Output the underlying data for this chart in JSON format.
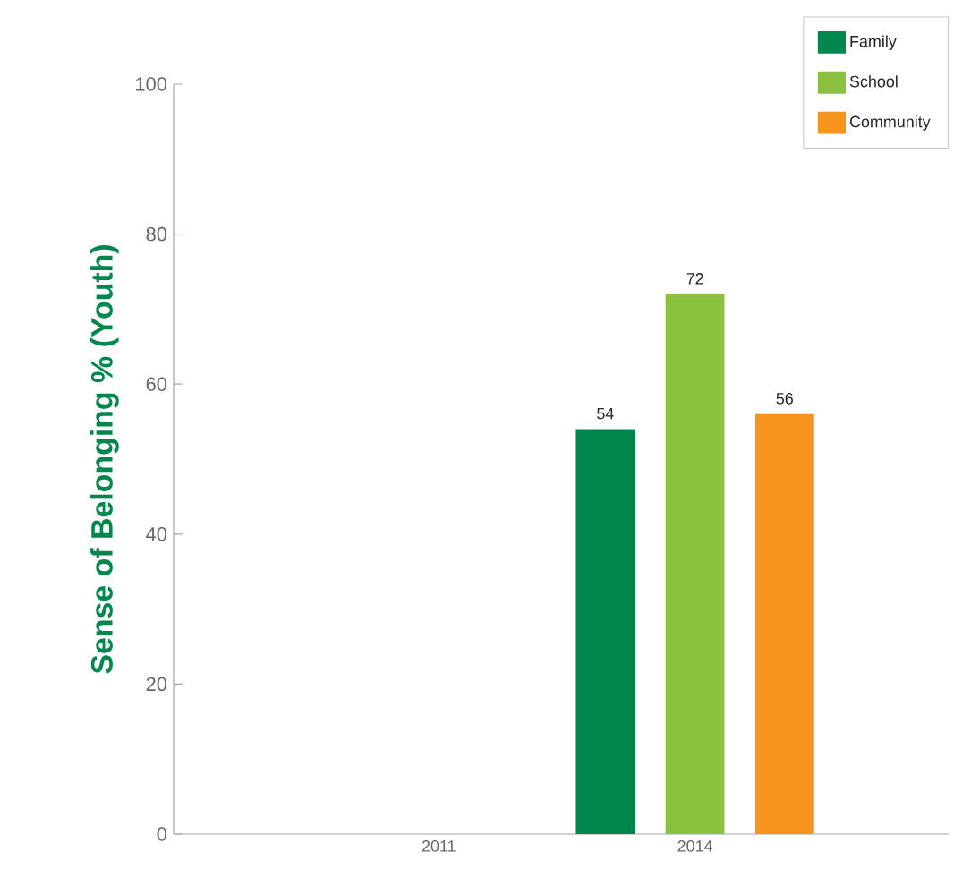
{
  "chart_data": {
    "type": "bar",
    "ylabel": "Sense of Belonging % (Youth)",
    "categories": [
      "2011",
      "2014"
    ],
    "series": [
      {
        "name": "Family",
        "color": "#00874e",
        "values": [
          null,
          54
        ]
      },
      {
        "name": "School",
        "color": "#8cc13f",
        "values": [
          null,
          72
        ]
      },
      {
        "name": "Community",
        "color": "#f7941d",
        "values": [
          null,
          56
        ]
      }
    ],
    "ylim": [
      0,
      100
    ],
    "yticks": [
      0,
      20,
      40,
      60,
      80,
      100
    ],
    "data_labels": true,
    "legend": "top right",
    "grid": false
  }
}
